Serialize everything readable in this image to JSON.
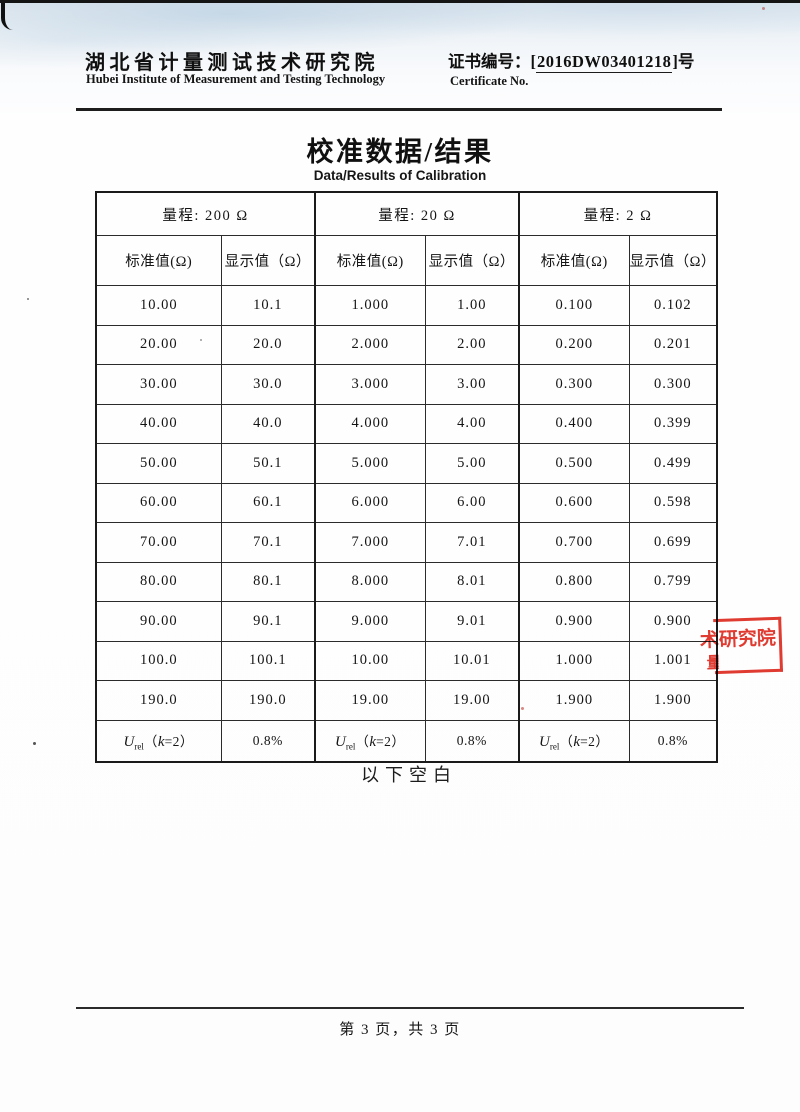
{
  "header": {
    "institute_cn": "湖北省计量测试技术研究院",
    "institute_en": "Hubei Institute of Measurement and Testing Technology",
    "cert_label_cn": "证书编号：",
    "cert_bracket_open": "[",
    "cert_number": "2016DW03401218",
    "cert_bracket_close": "]",
    "cert_suffix": "号",
    "cert_label_en": "Certificate No."
  },
  "title_cn": "校准数据/结果",
  "title_en": "Data/Results of Calibration",
  "table": {
    "range_headers": [
      "量程: 200 Ω",
      "量程: 20 Ω",
      "量程: 2 Ω"
    ],
    "col_headers": [
      "标准值(Ω)",
      "显示值（Ω）",
      "标准值(Ω)",
      "显示值（Ω）",
      "标准值(Ω)",
      "显示值（Ω）"
    ],
    "rows": [
      [
        "10.00",
        "10.1",
        "1.000",
        "1.00",
        "0.100",
        "0.102"
      ],
      [
        "20.00",
        "20.0",
        "2.000",
        "2.00",
        "0.200",
        "0.201"
      ],
      [
        "30.00",
        "30.0",
        "3.000",
        "3.00",
        "0.300",
        "0.300"
      ],
      [
        "40.00",
        "40.0",
        "4.000",
        "4.00",
        "0.400",
        "0.399"
      ],
      [
        "50.00",
        "50.1",
        "5.000",
        "5.00",
        "0.500",
        "0.499"
      ],
      [
        "60.00",
        "60.1",
        "6.000",
        "6.00",
        "0.600",
        "0.598"
      ],
      [
        "70.00",
        "70.1",
        "7.000",
        "7.01",
        "0.700",
        "0.699"
      ],
      [
        "80.00",
        "80.1",
        "8.000",
        "8.01",
        "0.800",
        "0.799"
      ],
      [
        "90.00",
        "90.1",
        "9.000",
        "9.01",
        "0.900",
        "0.900"
      ],
      [
        "100.0",
        "100.1",
        "10.00",
        "10.01",
        "1.000",
        "1.001"
      ],
      [
        "190.0",
        "190.0",
        "19.00",
        "19.00",
        "1.900",
        "1.900"
      ]
    ],
    "uncertainty": {
      "symbol": "U",
      "subscript": "rel",
      "cond_open": "（",
      "cond_var": "k",
      "cond_rest": "=2）",
      "value": "0.8%"
    }
  },
  "below_blank": "以下空白",
  "footer": "第 3 页，共 3 页",
  "stamp": {
    "line1": "术研究院",
    "line2": "量"
  }
}
